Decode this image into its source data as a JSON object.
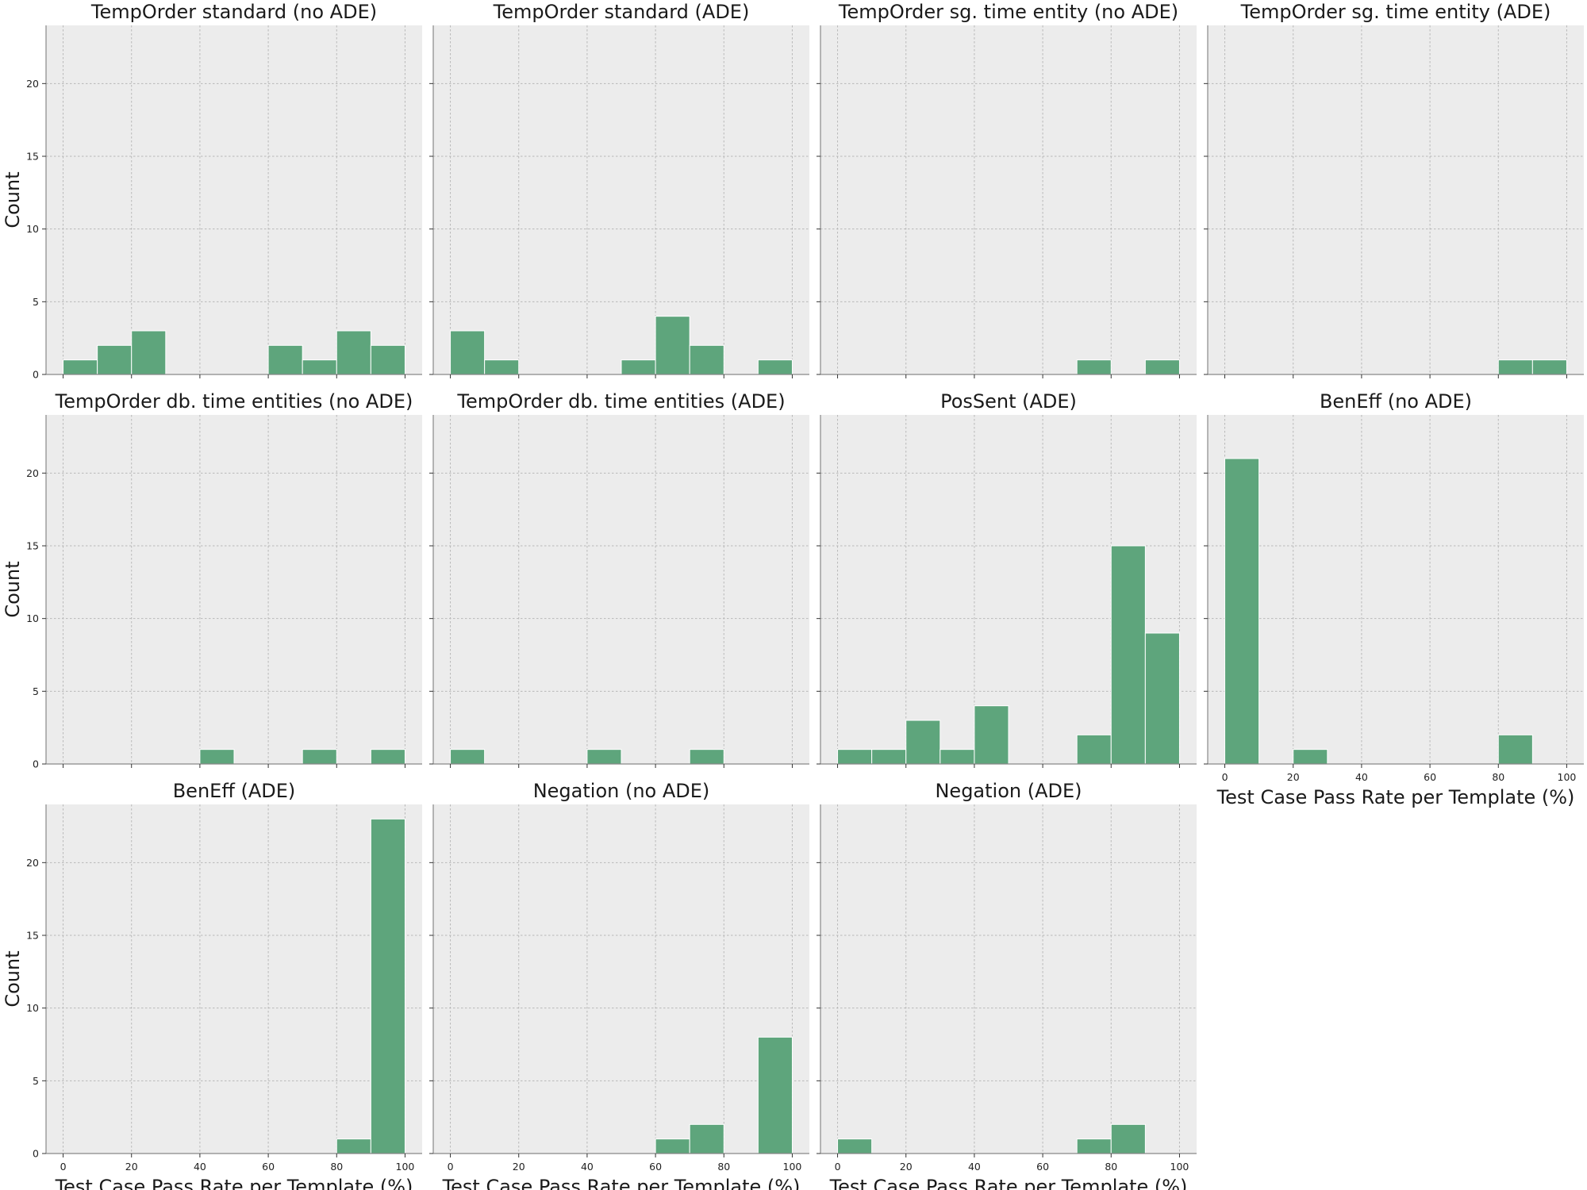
{
  "figure": {
    "shared_ylabel": "Count",
    "shared_xlabel": "Test Case Pass Rate per Template (%)"
  },
  "chart_data": [
    {
      "type": "bar",
      "title": "TempOrder standard (no ADE)",
      "bins": [
        0,
        10,
        20,
        30,
        40,
        50,
        60,
        70,
        80,
        90,
        100
      ],
      "counts": [
        1,
        2,
        3,
        0,
        0,
        0,
        2,
        1,
        3,
        2
      ],
      "xlim": [
        -5,
        105
      ],
      "ylim": [
        0,
        24
      ],
      "xticks": [
        0,
        20,
        40,
        60,
        80,
        100
      ],
      "yticks": [
        0,
        5,
        10,
        15,
        20
      ],
      "xlabel": "",
      "ylabel": "Count",
      "show_xticklabels": false,
      "show_yticklabels": true
    },
    {
      "type": "bar",
      "title": "TempOrder standard (ADE)",
      "bins": [
        0,
        10,
        20,
        30,
        40,
        50,
        60,
        70,
        80,
        90,
        100
      ],
      "counts": [
        3,
        1,
        0,
        0,
        0,
        1,
        4,
        2,
        0,
        1
      ],
      "xlim": [
        -5,
        105
      ],
      "ylim": [
        0,
        24
      ],
      "xticks": [
        0,
        20,
        40,
        60,
        80,
        100
      ],
      "yticks": [
        0,
        5,
        10,
        15,
        20
      ],
      "xlabel": "",
      "ylabel": "",
      "show_xticklabels": false,
      "show_yticklabels": false
    },
    {
      "type": "bar",
      "title": "TempOrder sg. time entity (no ADE)",
      "bins": [
        0,
        10,
        20,
        30,
        40,
        50,
        60,
        70,
        80,
        90,
        100
      ],
      "counts": [
        0,
        0,
        0,
        0,
        0,
        0,
        0,
        1,
        0,
        1
      ],
      "xlim": [
        -5,
        105
      ],
      "ylim": [
        0,
        24
      ],
      "xticks": [
        0,
        20,
        40,
        60,
        80,
        100
      ],
      "yticks": [
        0,
        5,
        10,
        15,
        20
      ],
      "xlabel": "",
      "ylabel": "",
      "show_xticklabels": false,
      "show_yticklabels": false
    },
    {
      "type": "bar",
      "title": "TempOrder sg. time entity (ADE)",
      "bins": [
        0,
        10,
        20,
        30,
        40,
        50,
        60,
        70,
        80,
        90,
        100
      ],
      "counts": [
        0,
        0,
        0,
        0,
        0,
        0,
        0,
        0,
        1,
        1
      ],
      "xlim": [
        -5,
        105
      ],
      "ylim": [
        0,
        24
      ],
      "xticks": [
        0,
        20,
        40,
        60,
        80,
        100
      ],
      "yticks": [
        0,
        5,
        10,
        15,
        20
      ],
      "xlabel": "",
      "ylabel": "",
      "show_xticklabels": false,
      "show_yticklabels": false
    },
    {
      "type": "bar",
      "title": "TempOrder db. time entities (no ADE)",
      "bins": [
        0,
        10,
        20,
        30,
        40,
        50,
        60,
        70,
        80,
        90,
        100
      ],
      "counts": [
        0,
        0,
        0,
        0,
        1,
        0,
        0,
        1,
        0,
        1
      ],
      "xlim": [
        -5,
        105
      ],
      "ylim": [
        0,
        24
      ],
      "xticks": [
        0,
        20,
        40,
        60,
        80,
        100
      ],
      "yticks": [
        0,
        5,
        10,
        15,
        20
      ],
      "xlabel": "",
      "ylabel": "Count",
      "show_xticklabels": false,
      "show_yticklabels": true
    },
    {
      "type": "bar",
      "title": "TempOrder db. time entities (ADE)",
      "bins": [
        0,
        10,
        20,
        30,
        40,
        50,
        60,
        70,
        80,
        90,
        100
      ],
      "counts": [
        1,
        0,
        0,
        0,
        1,
        0,
        0,
        1,
        0,
        0
      ],
      "xlim": [
        -5,
        105
      ],
      "ylim": [
        0,
        24
      ],
      "xticks": [
        0,
        20,
        40,
        60,
        80,
        100
      ],
      "yticks": [
        0,
        5,
        10,
        15,
        20
      ],
      "xlabel": "",
      "ylabel": "",
      "show_xticklabels": false,
      "show_yticklabels": false
    },
    {
      "type": "bar",
      "title": "PosSent (ADE)",
      "bins": [
        0,
        10,
        20,
        30,
        40,
        50,
        60,
        70,
        80,
        90,
        100
      ],
      "counts": [
        1,
        1,
        3,
        1,
        4,
        0,
        0,
        2,
        15,
        9
      ],
      "xlim": [
        -5,
        105
      ],
      "ylim": [
        0,
        24
      ],
      "xticks": [
        0,
        20,
        40,
        60,
        80,
        100
      ],
      "yticks": [
        0,
        5,
        10,
        15,
        20
      ],
      "xlabel": "",
      "ylabel": "",
      "show_xticklabels": false,
      "show_yticklabels": false
    },
    {
      "type": "bar",
      "title": "BenEff (no ADE)",
      "bins": [
        0,
        10,
        20,
        30,
        40,
        50,
        60,
        70,
        80,
        90,
        100
      ],
      "counts": [
        21,
        0,
        1,
        0,
        0,
        0,
        0,
        0,
        2,
        0
      ],
      "xlim": [
        -5,
        105
      ],
      "ylim": [
        0,
        24
      ],
      "xticks": [
        0,
        20,
        40,
        60,
        80,
        100
      ],
      "yticks": [
        0,
        5,
        10,
        15,
        20
      ],
      "xlabel": "Test Case Pass Rate per Template (%)",
      "ylabel": "",
      "show_xticklabels": true,
      "show_yticklabels": false
    },
    {
      "type": "bar",
      "title": "BenEff (ADE)",
      "bins": [
        0,
        10,
        20,
        30,
        40,
        50,
        60,
        70,
        80,
        90,
        100
      ],
      "counts": [
        0,
        0,
        0,
        0,
        0,
        0,
        0,
        0,
        1,
        23
      ],
      "xlim": [
        -5,
        105
      ],
      "ylim": [
        0,
        24
      ],
      "xticks": [
        0,
        20,
        40,
        60,
        80,
        100
      ],
      "yticks": [
        0,
        5,
        10,
        15,
        20
      ],
      "xlabel": "Test Case Pass Rate per Template (%)",
      "ylabel": "Count",
      "show_xticklabels": true,
      "show_yticklabels": true
    },
    {
      "type": "bar",
      "title": "Negation (no ADE)",
      "bins": [
        0,
        10,
        20,
        30,
        40,
        50,
        60,
        70,
        80,
        90,
        100
      ],
      "counts": [
        0,
        0,
        0,
        0,
        0,
        0,
        1,
        2,
        0,
        8
      ],
      "xlim": [
        -5,
        105
      ],
      "ylim": [
        0,
        24
      ],
      "xticks": [
        0,
        20,
        40,
        60,
        80,
        100
      ],
      "yticks": [
        0,
        5,
        10,
        15,
        20
      ],
      "xlabel": "Test Case Pass Rate per Template (%)",
      "ylabel": "",
      "show_xticklabels": true,
      "show_yticklabels": false
    },
    {
      "type": "bar",
      "title": "Negation (ADE)",
      "bins": [
        0,
        10,
        20,
        30,
        40,
        50,
        60,
        70,
        80,
        90,
        100
      ],
      "counts": [
        1,
        0,
        0,
        0,
        0,
        0,
        0,
        1,
        2,
        0
      ],
      "xlim": [
        -5,
        105
      ],
      "ylim": [
        0,
        24
      ],
      "xticks": [
        0,
        20,
        40,
        60,
        80,
        100
      ],
      "yticks": [
        0,
        5,
        10,
        15,
        20
      ],
      "xlabel": "Test Case Pass Rate per Template (%)",
      "ylabel": "",
      "show_xticklabels": true,
      "show_yticklabels": false
    }
  ],
  "colors": {
    "bar": "#5ea57c",
    "bar_edge": "#ffffff",
    "panel_background": "#ececec",
    "grid": "#b8b8b8",
    "spine": "#888888"
  }
}
